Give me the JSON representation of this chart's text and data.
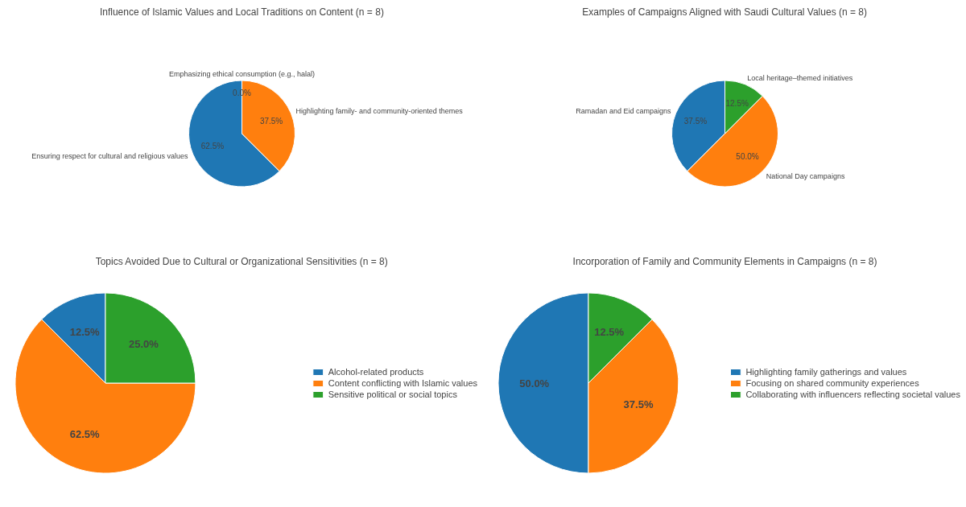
{
  "chart_data": [
    {
      "type": "pie",
      "title": "Influence of Islamic Values and Local Traditions on Content (n = 8)",
      "categories": [
        "Ensuring respect for cultural and religious values",
        "Highlighting family- and community-oriented themes",
        "Emphasizing ethical consumption (e.g., halal)"
      ],
      "values": [
        62.5,
        37.5,
        0.0
      ],
      "value_labels": [
        "62.5%",
        "37.5%",
        "0.0%"
      ],
      "colors": [
        "#1f77b4",
        "#ff7f0e",
        "#2ca02c"
      ],
      "data_labels": true,
      "legend": false
    },
    {
      "type": "pie",
      "title": "Examples of Campaigns Aligned with Saudi Cultural Values (n = 8)",
      "categories": [
        "Ramadan and Eid campaigns",
        "National Day campaigns",
        "Local heritage–themed initiatives"
      ],
      "values": [
        37.5,
        50.0,
        12.5
      ],
      "value_labels": [
        "37.5%",
        "50.0%",
        "12.5%"
      ],
      "colors": [
        "#1f77b4",
        "#ff7f0e",
        "#2ca02c"
      ],
      "data_labels": true,
      "legend": false
    },
    {
      "type": "pie",
      "title": "Topics Avoided Due to Cultural or Organizational Sensitivities (n = 8)",
      "categories": [
        "Alcohol-related products",
        "Content conflicting with Islamic values",
        "Sensitive political or social topics"
      ],
      "values": [
        12.5,
        62.5,
        25.0
      ],
      "value_labels": [
        "12.5%",
        "62.5%",
        "25.0%"
      ],
      "colors": [
        "#1f77b4",
        "#ff7f0e",
        "#2ca02c"
      ],
      "data_labels": true,
      "legend": "right"
    },
    {
      "type": "pie",
      "title": "Incorporation of Family and Community Elements in Campaigns (n = 8)",
      "categories": [
        "Highlighting family gatherings and values",
        "Focusing on shared community experiences",
        "Collaborating with influencers reflecting societal values"
      ],
      "values": [
        50.0,
        37.5,
        12.5
      ],
      "value_labels": [
        "50.0%",
        "37.5%",
        "12.5%"
      ],
      "colors": [
        "#1f77b4",
        "#ff7f0e",
        "#2ca02c"
      ],
      "data_labels": true,
      "legend": "right"
    }
  ]
}
